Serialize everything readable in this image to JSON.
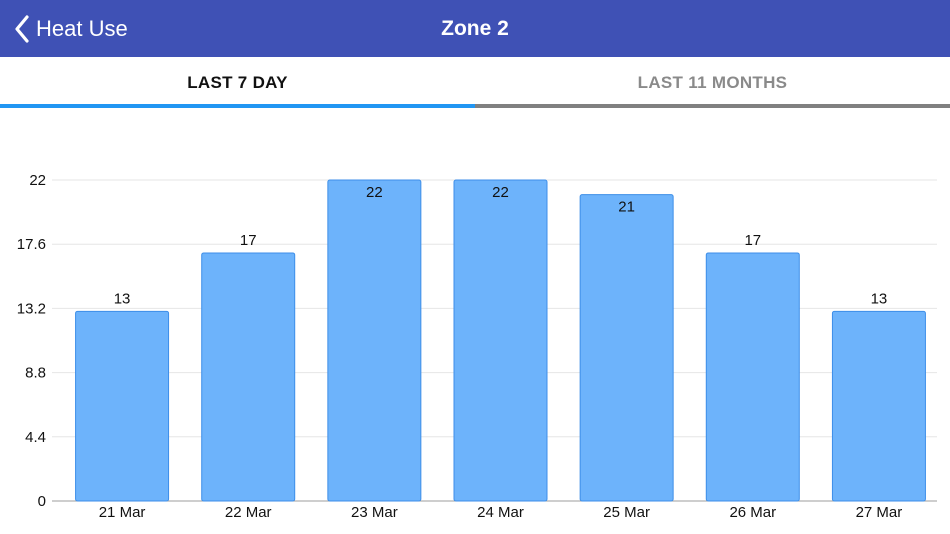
{
  "navbar": {
    "back_label": "Heat Use",
    "title": "Zone 2",
    "color": "#3f51b5"
  },
  "tabs": [
    {
      "label": "LAST 7 DAY",
      "active": true
    },
    {
      "label": "LAST 11 MONTHS",
      "active": false
    }
  ],
  "icons": {
    "back": "chevron-left-icon"
  },
  "chart_data": {
    "type": "bar",
    "categories": [
      "21 Mar",
      "22 Mar",
      "23 Mar",
      "24 Mar",
      "25 Mar",
      "26 Mar",
      "27 Mar"
    ],
    "values": [
      13,
      17,
      22,
      22,
      21,
      17,
      13
    ],
    "yticks": [
      "0",
      "4.4",
      "8.8",
      "13.2",
      "17.6",
      "22"
    ],
    "ylim": [
      0,
      22
    ],
    "grid": true,
    "bar_color": "#6db3fb",
    "bar_border": "#3d8ee8"
  }
}
